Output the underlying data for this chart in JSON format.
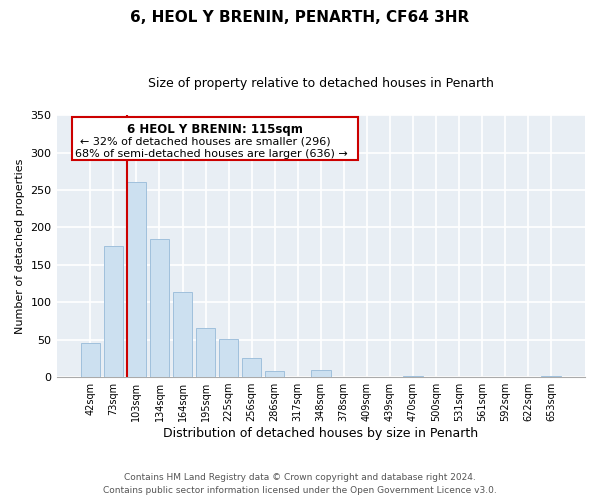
{
  "title": "6, HEOL Y BRENIN, PENARTH, CF64 3HR",
  "subtitle": "Size of property relative to detached houses in Penarth",
  "xlabel": "Distribution of detached houses by size in Penarth",
  "ylabel": "Number of detached properties",
  "categories": [
    "42sqm",
    "73sqm",
    "103sqm",
    "134sqm",
    "164sqm",
    "195sqm",
    "225sqm",
    "256sqm",
    "286sqm",
    "317sqm",
    "348sqm",
    "378sqm",
    "409sqm",
    "439sqm",
    "470sqm",
    "500sqm",
    "531sqm",
    "561sqm",
    "592sqm",
    "622sqm",
    "653sqm"
  ],
  "values": [
    46,
    175,
    261,
    184,
    114,
    65,
    51,
    25,
    8,
    0,
    9,
    0,
    0,
    0,
    2,
    0,
    0,
    0,
    0,
    0,
    1
  ],
  "bar_color": "#cce0f0",
  "bar_edge_color": "#a0c0dc",
  "vline_color": "#cc0000",
  "ylim": [
    0,
    350
  ],
  "yticks": [
    0,
    50,
    100,
    150,
    200,
    250,
    300,
    350
  ],
  "annotation_title": "6 HEOL Y BRENIN: 115sqm",
  "annotation_line1": "← 32% of detached houses are smaller (296)",
  "annotation_line2": "68% of semi-detached houses are larger (636) →",
  "footer_line1": "Contains HM Land Registry data © Crown copyright and database right 2024.",
  "footer_line2": "Contains public sector information licensed under the Open Government Licence v3.0.",
  "background_color": "#e8eef4"
}
